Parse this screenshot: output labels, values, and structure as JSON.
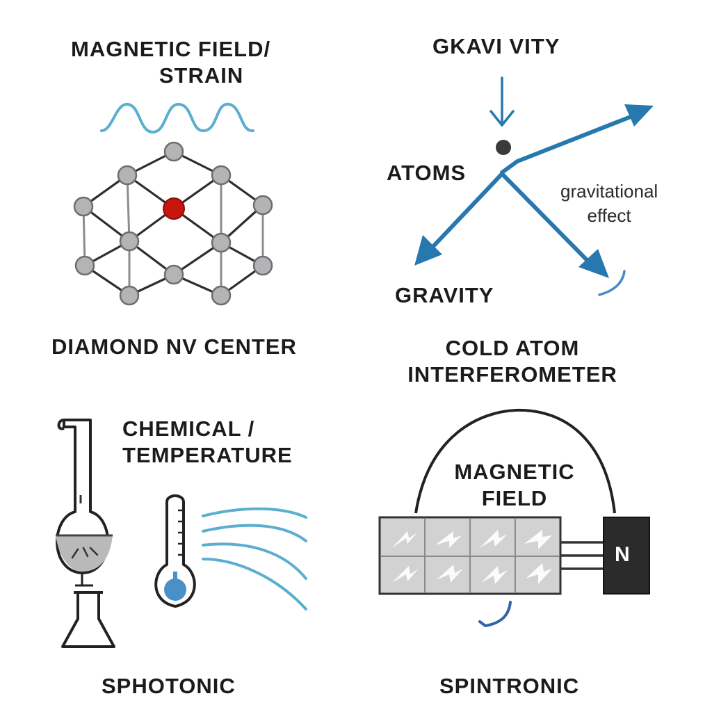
{
  "nv": {
    "stimulus_line1": "MAGNETIC FIELD/",
    "stimulus_line2": "STRAIN",
    "caption": "DIAMOND NV CENTER"
  },
  "atom": {
    "top_label": "GKAVI VITY",
    "atoms_label": "ATOMS",
    "effect_line1": "gravitational",
    "effect_line2": "effect",
    "bottom_label": "GRAVITY",
    "caption_line1": "COLD ATOM",
    "caption_line2": "INTERFEROMETER"
  },
  "chem": {
    "stimulus_line1": "CHEMICAL /",
    "stimulus_line2": "TEMPERATURE",
    "caption": "SPHOTONIC"
  },
  "spin": {
    "field_line1": "MAGNETIC",
    "field_line2": "FIELD",
    "magnet_label": "N",
    "caption": "SPINTRONIC"
  },
  "colors": {
    "wave_blue": "#5aaed0",
    "arrow_blue": "#2678ae",
    "nv_red": "#c8160e",
    "node_gray": "#b4b4b6",
    "magnet_black": "#2b2b2b"
  }
}
